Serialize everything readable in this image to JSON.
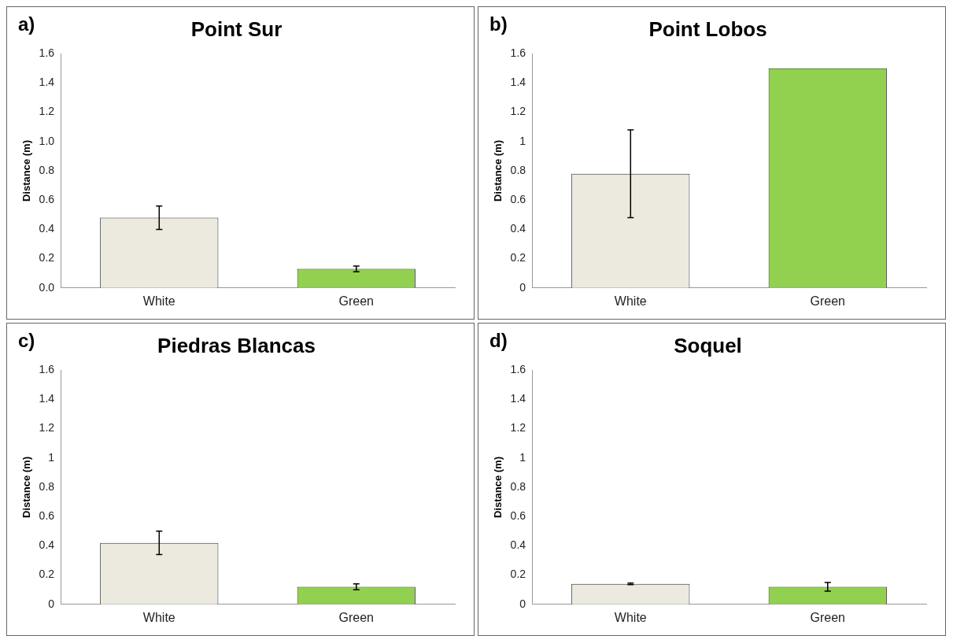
{
  "chart_data": [
    {
      "type": "bar",
      "title": "Point Sur",
      "annotations": [
        "a)"
      ],
      "ylabel": "Distance (m)",
      "categories": [
        "White",
        "Green"
      ],
      "values": [
        0.48,
        0.13
      ],
      "errors": [
        0.08,
        0.02
      ],
      "colors": [
        "#ece9df",
        "#92d050"
      ],
      "ylim": [
        0,
        1.6
      ],
      "yticks": [
        {
          "value": 0,
          "label": "0.0"
        },
        {
          "value": 0.2,
          "label": "0.2"
        },
        {
          "value": 0.4,
          "label": "0.4"
        },
        {
          "value": 0.6,
          "label": "0.6"
        },
        {
          "value": 0.8,
          "label": "0.8"
        },
        {
          "value": 1,
          "label": "1.0"
        },
        {
          "value": 1.2,
          "label": "1.2"
        },
        {
          "value": 1.4,
          "label": "1.4"
        },
        {
          "value": 1.6,
          "label": "1.6"
        }
      ],
      "grid": false,
      "legend": false
    },
    {
      "type": "bar",
      "title": "Point Lobos",
      "annotations": [
        "b)"
      ],
      "ylabel": "Distance (m)",
      "categories": [
        "White",
        "Green"
      ],
      "values": [
        0.78,
        1.5
      ],
      "errors": [
        0.3,
        null
      ],
      "colors": [
        "#ece9df",
        "#92d050"
      ],
      "ylim": [
        0,
        1.6
      ],
      "yticks": [
        0,
        0.2,
        0.4,
        0.6,
        0.8,
        1,
        1.2,
        1.4,
        1.6
      ],
      "grid": false,
      "legend": false
    },
    {
      "type": "bar",
      "title": "Piedras Blancas",
      "annotations": [
        "c)"
      ],
      "ylabel": "Distance (m)",
      "categories": [
        "White",
        "Green"
      ],
      "values": [
        0.42,
        0.12
      ],
      "errors": [
        0.08,
        0.02
      ],
      "colors": [
        "#ece9df",
        "#92d050"
      ],
      "ylim": [
        0,
        1.6
      ],
      "yticks": [
        0,
        0.2,
        0.4,
        0.6,
        0.8,
        1,
        1.2,
        1.4,
        1.6
      ],
      "grid": false,
      "legend": false
    },
    {
      "type": "bar",
      "title": "Soquel",
      "annotations": [
        "d)"
      ],
      "ylabel": "Distance (m)",
      "categories": [
        "White",
        "Green"
      ],
      "values": [
        0.14,
        0.12
      ],
      "errors": [
        0.005,
        0.03
      ],
      "colors": [
        "#ece9df",
        "#92d050"
      ],
      "ylim": [
        0,
        1.6
      ],
      "yticks": [
        0,
        0.2,
        0.4,
        0.6,
        0.8,
        1,
        1.2,
        1.4,
        1.6
      ],
      "grid": false,
      "legend": false
    }
  ]
}
